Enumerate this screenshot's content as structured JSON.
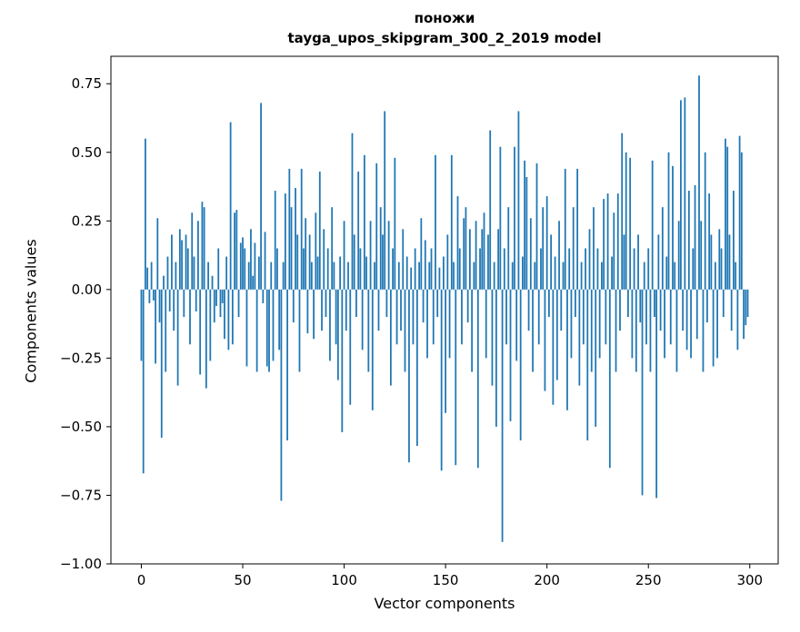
{
  "chart_data": {
    "type": "bar",
    "title_line1": "поножи",
    "title_line2": "tayga_upos_skipgram_300_2_2019 model",
    "xlabel": "Vector components",
    "ylabel": "Components values",
    "bar_color": "#1f77b4",
    "background_color": "#ffffff",
    "xlim": [
      -15,
      314
    ],
    "ylim": [
      -1.0,
      0.85
    ],
    "xticks": [
      0,
      50,
      100,
      150,
      200,
      250,
      300
    ],
    "yticks": [
      -1.0,
      -0.75,
      -0.5,
      -0.25,
      0.0,
      0.25,
      0.5,
      0.75
    ],
    "grid": false,
    "legend": "none",
    "x_start": 0,
    "values": [
      -0.26,
      -0.67,
      0.55,
      0.08,
      -0.05,
      0.1,
      -0.04,
      -0.27,
      0.26,
      -0.12,
      -0.54,
      0.05,
      -0.3,
      0.12,
      -0.08,
      0.2,
      -0.15,
      0.1,
      -0.35,
      0.22,
      0.18,
      -0.1,
      0.2,
      0.15,
      -0.2,
      0.28,
      0.12,
      -0.08,
      0.25,
      -0.31,
      0.32,
      0.3,
      -0.36,
      0.1,
      -0.26,
      0.05,
      -0.12,
      -0.06,
      0.15,
      -0.1,
      -0.05,
      -0.18,
      0.12,
      -0.22,
      0.61,
      -0.2,
      0.28,
      0.29,
      -0.1,
      0.17,
      0.19,
      0.15,
      -0.28,
      0.1,
      0.22,
      0.05,
      0.17,
      -0.3,
      0.12,
      0.68,
      -0.05,
      0.21,
      -0.28,
      -0.3,
      0.1,
      -0.26,
      0.36,
      0.15,
      -0.22,
      -0.77,
      0.1,
      0.35,
      -0.55,
      0.44,
      0.3,
      -0.12,
      0.37,
      0.2,
      -0.3,
      0.44,
      0.15,
      0.26,
      -0.16,
      0.2,
      0.1,
      -0.18,
      0.28,
      0.12,
      0.43,
      -0.15,
      0.22,
      -0.1,
      0.15,
      -0.26,
      0.3,
      0.1,
      -0.2,
      -0.33,
      0.12,
      -0.52,
      0.25,
      -0.15,
      0.1,
      -0.42,
      0.57,
      0.2,
      -0.1,
      0.43,
      0.15,
      -0.22,
      0.49,
      0.12,
      -0.3,
      0.25,
      -0.44,
      0.1,
      0.46,
      -0.15,
      0.3,
      0.2,
      0.65,
      -0.1,
      0.25,
      -0.35,
      0.15,
      0.48,
      -0.2,
      0.1,
      -0.15,
      0.22,
      -0.3,
      0.12,
      -0.63,
      0.08,
      -0.2,
      0.15,
      -0.57,
      0.1,
      0.26,
      -0.12,
      0.18,
      -0.25,
      0.1,
      0.15,
      -0.2,
      0.49,
      -0.1,
      0.08,
      -0.66,
      0.12,
      -0.45,
      0.2,
      -0.25,
      0.49,
      0.1,
      -0.64,
      0.34,
      0.15,
      -0.2,
      0.26,
      0.3,
      -0.12,
      0.22,
      -0.3,
      0.1,
      0.25,
      -0.65,
      0.15,
      0.22,
      0.28,
      -0.25,
      0.2,
      0.58,
      -0.35,
      0.1,
      -0.5,
      0.22,
      0.52,
      -0.92,
      0.15,
      -0.2,
      0.3,
      -0.48,
      0.1,
      0.52,
      -0.26,
      0.65,
      -0.55,
      0.12,
      0.47,
      0.41,
      -0.15,
      0.26,
      -0.3,
      0.1,
      0.46,
      -0.2,
      0.15,
      0.3,
      -0.37,
      0.34,
      -0.1,
      0.2,
      -0.42,
      0.12,
      -0.33,
      0.25,
      -0.15,
      0.1,
      0.44,
      -0.44,
      0.15,
      -0.25,
      0.3,
      -0.1,
      0.44,
      -0.35,
      0.1,
      -0.2,
      0.15,
      -0.55,
      0.22,
      -0.3,
      0.3,
      -0.5,
      0.15,
      -0.25,
      0.1,
      0.33,
      -0.2,
      0.35,
      -0.65,
      0.12,
      0.28,
      -0.3,
      0.35,
      -0.15,
      0.57,
      0.2,
      0.5,
      -0.1,
      0.48,
      -0.25,
      0.15,
      -0.3,
      0.2,
      -0.12,
      -0.75,
      0.1,
      -0.2,
      0.15,
      -0.3,
      0.47,
      -0.1,
      -0.76,
      0.2,
      -0.15,
      0.3,
      -0.25,
      0.12,
      0.5,
      -0.2,
      0.45,
      0.1,
      -0.3,
      0.25,
      0.69,
      -0.15,
      0.7,
      -0.22,
      0.36,
      -0.25,
      0.15,
      0.38,
      -0.18,
      0.78,
      0.25,
      -0.3,
      0.5,
      -0.12,
      0.35,
      0.2,
      -0.28,
      0.1,
      -0.25,
      0.22,
      0.15,
      -0.1,
      0.55,
      0.52,
      0.2,
      -0.15,
      0.36,
      0.1,
      -0.22,
      0.56,
      0.5,
      -0.18,
      -0.13,
      -0.1
    ]
  }
}
